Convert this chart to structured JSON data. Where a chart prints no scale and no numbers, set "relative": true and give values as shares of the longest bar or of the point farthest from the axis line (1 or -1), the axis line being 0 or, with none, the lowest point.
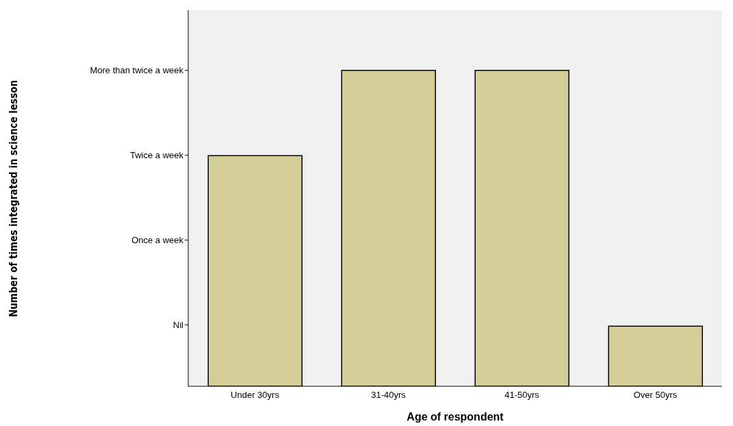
{
  "chart_data": {
    "type": "bar",
    "xlabel": "Age of respondent",
    "categories": [
      "Under 30yrs",
      "31-40yrs",
      "41-50yrs",
      "Over 50yrs"
    ],
    "values": [
      0.73,
      1,
      1,
      0.19
    ],
    "color": "#d3ce97",
    "relative": true,
    "annotations": [
      "Nil",
      "Once a week",
      "Twice a week",
      "More than twice a week",
      "Number of times integrated in science lesson"
    ],
    "grid": false,
    "legend": false
  }
}
